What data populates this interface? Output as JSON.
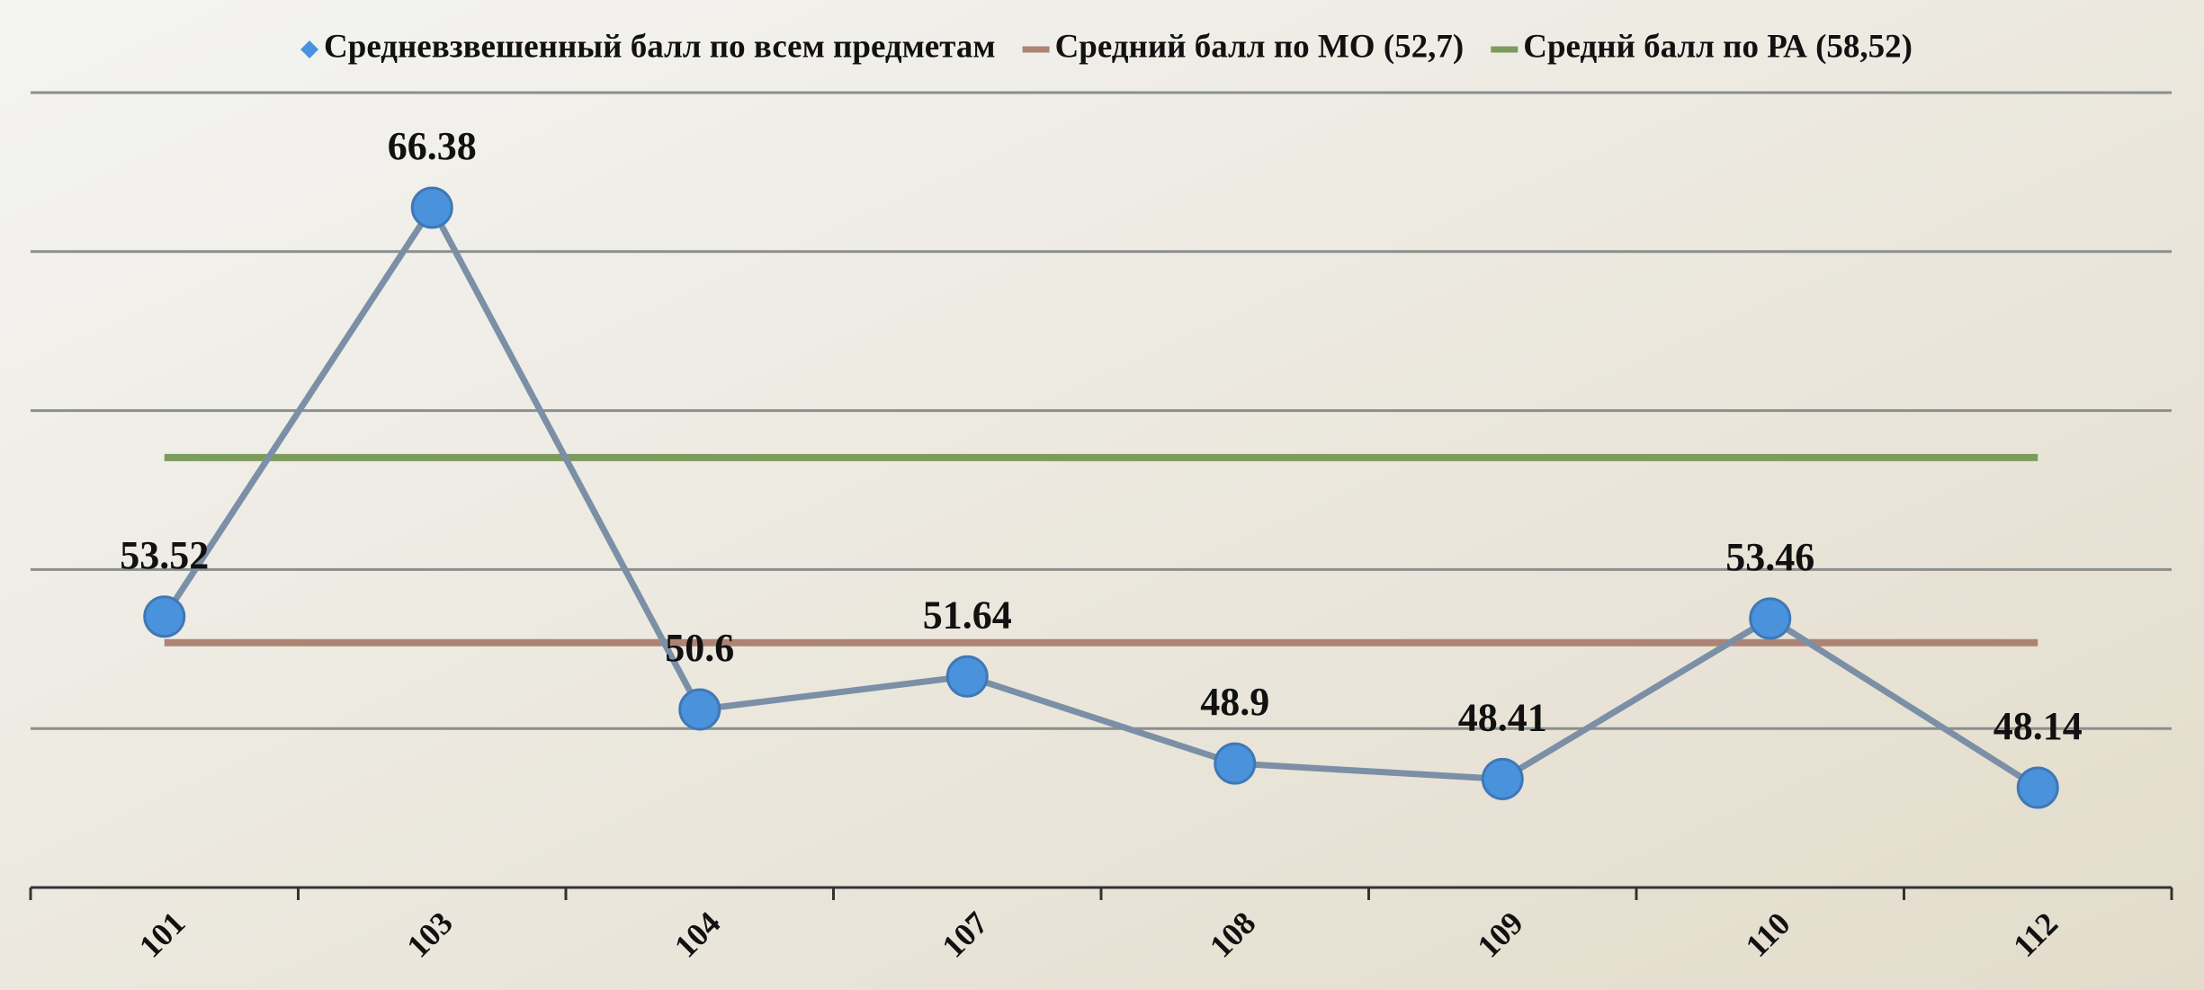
{
  "chart_data": {
    "type": "line",
    "categories": [
      "101",
      "103",
      "104",
      "107",
      "108",
      "109",
      "110",
      "112"
    ],
    "series": [
      {
        "name": "Средневзвешенный балл по всем предметам",
        "color": "#7b8fa6",
        "marker_color": "#4a92dc",
        "values": [
          53.52,
          66.38,
          50.6,
          51.64,
          48.9,
          48.41,
          53.46,
          48.14
        ]
      },
      {
        "name": "Средний балл по МО (52,7)",
        "color": "#ad8474",
        "values": [
          52.7,
          52.7,
          52.7,
          52.7,
          52.7,
          52.7,
          52.7,
          52.7
        ]
      },
      {
        "name": "Среднй балл по РА (58,52)",
        "color": "#7d9b5c",
        "values": [
          58.52,
          58.52,
          58.52,
          58.52,
          58.52,
          58.52,
          58.52,
          58.52
        ]
      }
    ],
    "ylim": [
      45,
      70
    ],
    "yticks": [
      45,
      50,
      55,
      60,
      65,
      70
    ],
    "grid": true,
    "legend": "top"
  }
}
